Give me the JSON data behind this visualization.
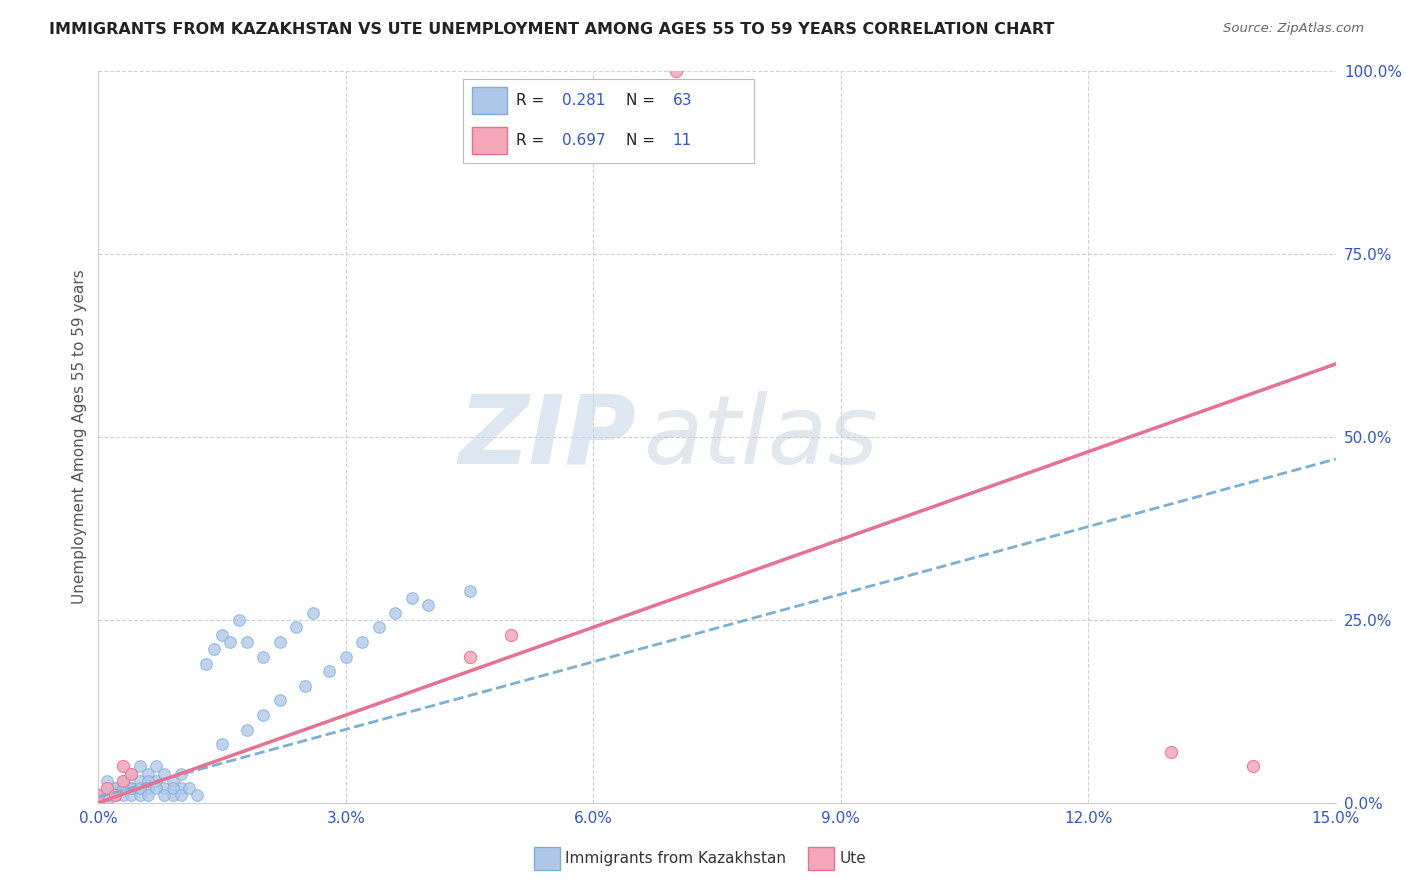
{
  "title": "IMMIGRANTS FROM KAZAKHSTAN VS UTE UNEMPLOYMENT AMONG AGES 55 TO 59 YEARS CORRELATION CHART",
  "source": "Source: ZipAtlas.com",
  "ylabel": "Unemployment Among Ages 55 to 59 years",
  "xlim": [
    0.0,
    0.15
  ],
  "ylim": [
    0.0,
    1.0
  ],
  "xticks": [
    0.0,
    0.03,
    0.06,
    0.09,
    0.12,
    0.15
  ],
  "xticklabels": [
    "0.0%",
    "3.0%",
    "6.0%",
    "9.0%",
    "12.0%",
    "15.0%"
  ],
  "yticks": [
    0.0,
    0.25,
    0.5,
    0.75,
    1.0
  ],
  "yticklabels": [
    "0.0%",
    "25.0%",
    "50.0%",
    "75.0%",
    "100.0%"
  ],
  "blue_scatter_x": [
    0.001,
    0.001,
    0.002,
    0.002,
    0.003,
    0.003,
    0.004,
    0.004,
    0.005,
    0.005,
    0.006,
    0.006,
    0.007,
    0.007,
    0.008,
    0.008,
    0.009,
    0.009,
    0.01,
    0.01,
    0.0,
    0.0,
    0.001,
    0.001,
    0.002,
    0.002,
    0.003,
    0.003,
    0.004,
    0.004,
    0.005,
    0.005,
    0.006,
    0.006,
    0.007,
    0.008,
    0.009,
    0.01,
    0.011,
    0.012,
    0.013,
    0.014,
    0.015,
    0.016,
    0.017,
    0.018,
    0.02,
    0.022,
    0.024,
    0.026,
    0.015,
    0.018,
    0.02,
    0.022,
    0.025,
    0.028,
    0.03,
    0.032,
    0.034,
    0.036,
    0.038,
    0.04,
    0.045
  ],
  "blue_scatter_y": [
    0.0,
    0.01,
    0.01,
    0.02,
    0.02,
    0.03,
    0.02,
    0.04,
    0.03,
    0.05,
    0.02,
    0.04,
    0.03,
    0.05,
    0.02,
    0.04,
    0.01,
    0.03,
    0.02,
    0.04,
    0.0,
    0.01,
    0.02,
    0.03,
    0.01,
    0.02,
    0.01,
    0.02,
    0.01,
    0.02,
    0.01,
    0.02,
    0.01,
    0.03,
    0.02,
    0.01,
    0.02,
    0.01,
    0.02,
    0.01,
    0.19,
    0.21,
    0.23,
    0.22,
    0.25,
    0.22,
    0.2,
    0.22,
    0.24,
    0.26,
    0.08,
    0.1,
    0.12,
    0.14,
    0.16,
    0.18,
    0.2,
    0.22,
    0.24,
    0.26,
    0.28,
    0.27,
    0.29
  ],
  "pink_scatter_x": [
    0.0,
    0.001,
    0.002,
    0.003,
    0.003,
    0.004,
    0.045,
    0.05,
    0.07,
    0.13,
    0.14
  ],
  "pink_scatter_y": [
    0.01,
    0.02,
    0.01,
    0.03,
    0.05,
    0.04,
    0.2,
    0.23,
    1.0,
    0.07,
    0.05
  ],
  "blue_line_x": [
    0.0,
    0.15
  ],
  "blue_line_y": [
    0.008,
    0.47
  ],
  "pink_line_x": [
    0.0,
    0.15
  ],
  "pink_line_y": [
    0.0,
    0.6
  ],
  "blue_line_color": "#7bafd4",
  "pink_line_color": "#e87090",
  "blue_scatter_color": "#aec6e8",
  "blue_scatter_edge": "#7bafd4",
  "pink_scatter_color": "#f4a7b9",
  "pink_scatter_edge": "#e87090",
  "watermark_zip_color": "#c5d8ea",
  "watermark_atlas_color": "#c5d0dc",
  "grid_color": "#cccccc",
  "background_color": "#ffffff",
  "title_color": "#222222",
  "axis_label_color": "#555555",
  "tick_color": "#3355cc",
  "scatter_size": 70,
  "R_blue": "0.281",
  "N_blue": "63",
  "R_pink": "0.697",
  "N_pink": "11",
  "legend_label_blue": "Immigrants from Kazakhstan",
  "legend_label_pink": "Ute"
}
